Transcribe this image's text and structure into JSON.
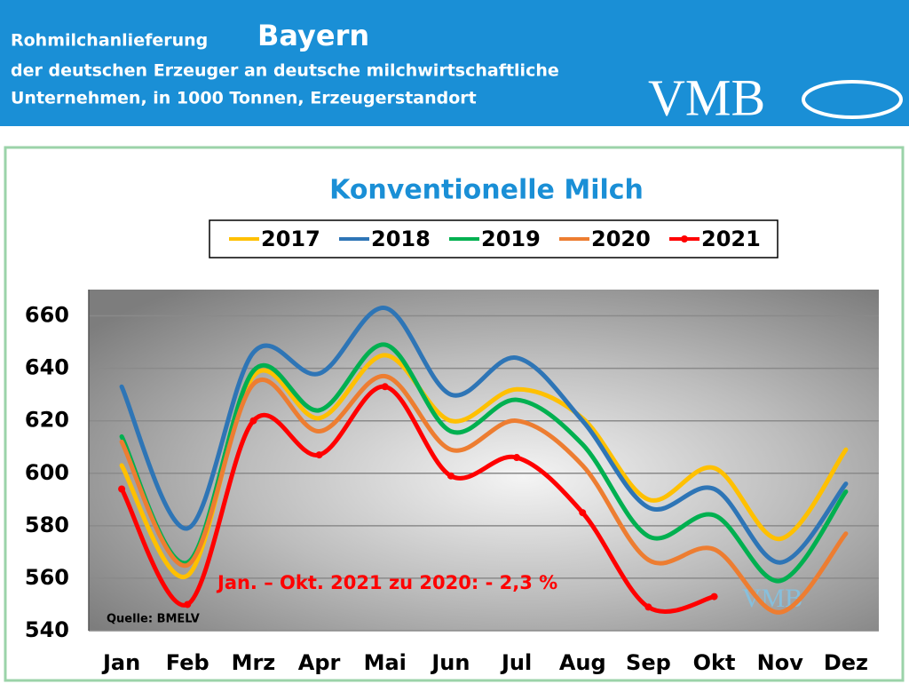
{
  "header": {
    "line1": "Rohmilchanlieferung",
    "region": "Bayern",
    "line2": "der deutschen Erzeuger an deutsche milchwirtschaftliche",
    "line3": "Unternehmen, in 1000 Tonnen, Erzeugerstandort",
    "logo": "VMB"
  },
  "chart_data": {
    "type": "line",
    "title": "Konventionelle Milch",
    "categories": [
      "Jan",
      "Feb",
      "Mrz",
      "Apr",
      "Mai",
      "Jun",
      "Jul",
      "Aug",
      "Sep",
      "Okt",
      "Nov",
      "Dez"
    ],
    "series": [
      {
        "name": "2017",
        "color": "#ffc000",
        "values": [
          603,
          561,
          637,
          621,
          645,
          620,
          632,
          621,
          590,
          602,
          575,
          609
        ]
      },
      {
        "name": "2018",
        "color": "#2e75b6",
        "values": [
          633,
          579,
          646,
          638,
          663,
          630,
          644,
          620,
          587,
          594,
          566,
          596
        ]
      },
      {
        "name": "2019",
        "color": "#00b050",
        "values": [
          614,
          566,
          639,
          624,
          649,
          616,
          628,
          611,
          576,
          584,
          559,
          593
        ]
      },
      {
        "name": "2020",
        "color": "#ed7d31",
        "values": [
          612,
          565,
          634,
          616,
          637,
          609,
          620,
          603,
          567,
          571,
          547,
          577
        ]
      },
      {
        "name": "2021",
        "color": "#ff0000",
        "markers": true,
        "values": [
          594,
          550,
          620,
          607,
          633,
          599,
          606,
          585,
          549,
          553,
          null,
          null
        ]
      }
    ],
    "ylim": [
      540,
      670
    ],
    "yticks": [
      540,
      560,
      580,
      600,
      620,
      640,
      660
    ],
    "grid": true,
    "annotation": "Jan. – Okt. 2021 zu 2020: - 2,3 %",
    "source": "Quelle: BMELV",
    "watermark": "VMB"
  }
}
